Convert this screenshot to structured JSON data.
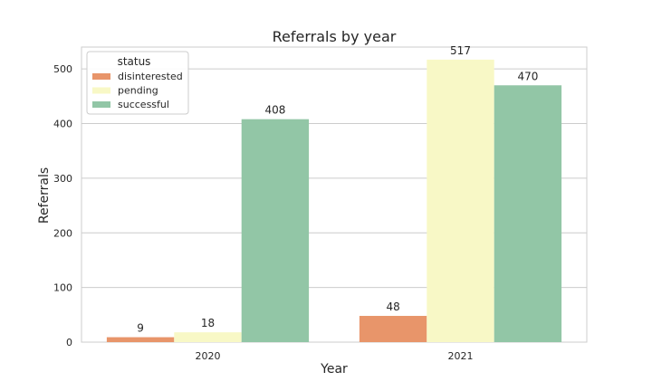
{
  "chart_data": {
    "type": "bar",
    "title": "Referrals by year",
    "xlabel": "Year",
    "ylabel": "Referrals",
    "categories": [
      "2020",
      "2021"
    ],
    "series": [
      {
        "name": "disinterested",
        "values": [
          9,
          48
        ],
        "color": "#e8956a"
      },
      {
        "name": "pending",
        "values": [
          18,
          517
        ],
        "color": "#f8f8c6"
      },
      {
        "name": "successful",
        "values": [
          408,
          470
        ],
        "color": "#92c6a6"
      }
    ],
    "ylim": [
      0,
      540
    ],
    "yticks": [
      0,
      100,
      200,
      300,
      400,
      500
    ],
    "grid": true,
    "legend": {
      "title": "status",
      "placement": "top-left"
    }
  }
}
